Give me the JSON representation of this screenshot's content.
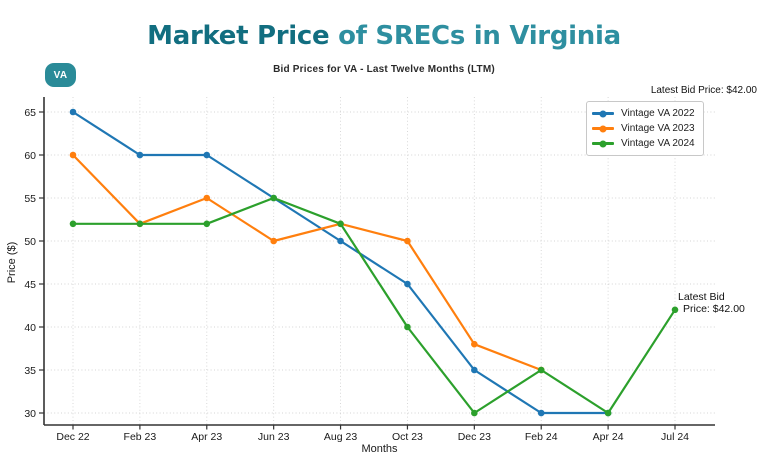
{
  "header": {
    "badge": "VA",
    "title_bold": "Market Price",
    "title_rest": " of SRECs in Virginia",
    "subtitle": "Bid Prices for VA - Last Twelve Months (LTM)",
    "latest_bid": "Latest Bid Price: $42.00"
  },
  "colors": {
    "title_dark_teal": "#126e80",
    "title_teal": "#2e8fa0",
    "badge_teal": "#2a8b98",
    "series_blue": "#1f77b4",
    "series_orange": "#ff7f0e",
    "series_green": "#2ca02c",
    "grid": "#d4d4d4",
    "axis": "#333333"
  },
  "chart_data": {
    "type": "line",
    "title": "Bid Prices for VA - Last Twelve Months (LTM)",
    "xlabel": "Months",
    "ylabel": "Price ($)",
    "categories": [
      "Dec 22",
      "Feb 23",
      "Apr 23",
      "Jun 23",
      "Aug 23",
      "Oct 23",
      "Dec 23",
      "Feb 24",
      "Apr 24",
      "Jul 24"
    ],
    "yticks": [
      30,
      35,
      40,
      45,
      50,
      55,
      60,
      65
    ],
    "ylim": [
      28,
      67
    ],
    "grid": true,
    "legend_position": "upper right",
    "series": [
      {
        "name": "Vintage VA 2022",
        "color": "#1f77b4",
        "values": [
          65,
          60,
          60,
          55,
          50,
          45,
          35,
          30,
          30,
          null
        ]
      },
      {
        "name": "Vintage VA 2023",
        "color": "#ff7f0e",
        "values": [
          60,
          52,
          55,
          50,
          52,
          50,
          38,
          35,
          null,
          null
        ]
      },
      {
        "name": "Vintage VA 2024",
        "color": "#2ca02c",
        "values": [
          52,
          52,
          52,
          55,
          52,
          40,
          30,
          35,
          30,
          42
        ]
      }
    ],
    "annotation": {
      "x": "Jul 24",
      "y": 42,
      "line1": "Latest Bid",
      "line2": "Price: $42.00"
    }
  }
}
